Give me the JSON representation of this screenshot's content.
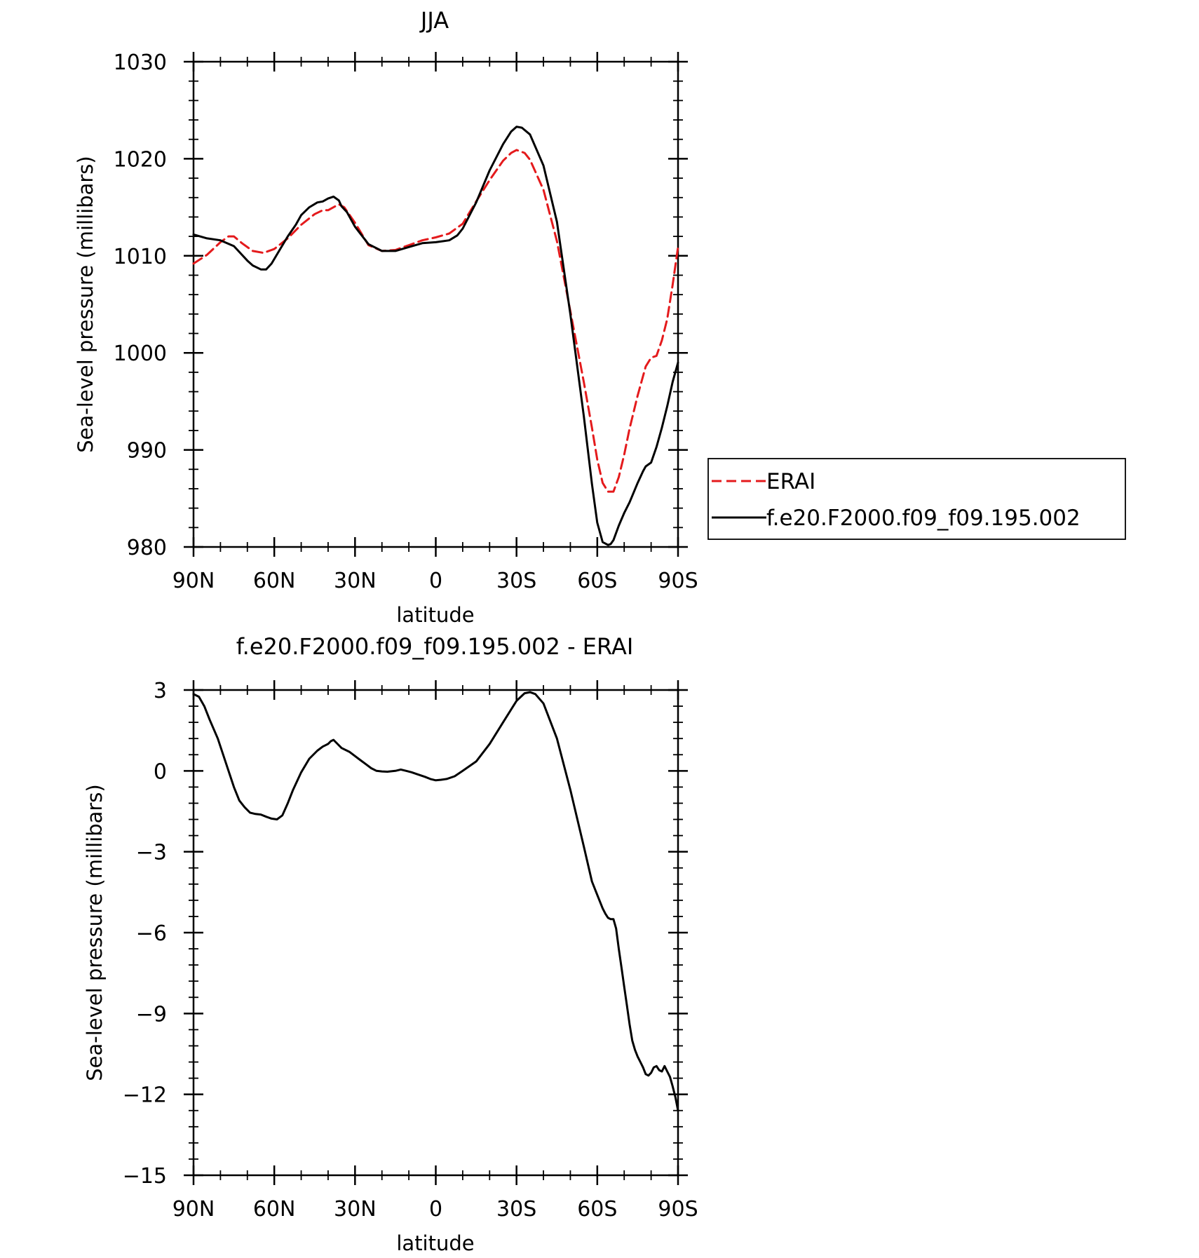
{
  "chart_data": [
    {
      "type": "line",
      "title": "JJA",
      "xlabel": "latitude",
      "ylabel": "Sea-level pressure (millibars)",
      "xlim": [
        90,
        -90
      ],
      "ylim": [
        980,
        1030
      ],
      "xticks": [
        90,
        60,
        30,
        0,
        -30,
        -60,
        -90
      ],
      "xtick_labels": [
        "90N",
        "60N",
        "30N",
        "0",
        "30S",
        "60S",
        "90S"
      ],
      "yticks": [
        980,
        990,
        1000,
        1010,
        1020,
        1030
      ],
      "ytick_labels": [
        "980",
        "990",
        "1000",
        "1010",
        "1020",
        "1030"
      ],
      "grid": false,
      "legend": "right",
      "series": [
        {
          "name": "ERAI",
          "color": "#e41a1c",
          "dash": "dashed",
          "x": [
            90,
            85,
            80,
            77,
            75,
            72,
            68,
            64,
            60,
            55,
            50,
            45,
            42,
            40,
            38,
            36,
            34,
            30,
            25,
            20,
            15,
            10,
            5,
            0,
            -5,
            -10,
            -15,
            -20,
            -25,
            -28,
            -30,
            -33,
            -35,
            -40,
            -45,
            -50,
            -55,
            -58,
            -60,
            -62,
            -64,
            -66,
            -68,
            -70,
            -72,
            -75,
            -78,
            -80,
            -82,
            -84,
            -86,
            -88,
            -90
          ],
          "y": [
            1009.2,
            1010.1,
            1011.4,
            1012.0,
            1012.0,
            1011.3,
            1010.5,
            1010.3,
            1010.7,
            1011.8,
            1013.2,
            1014.3,
            1014.7,
            1014.7,
            1015.0,
            1015.3,
            1015.0,
            1013.4,
            1011.1,
            1010.5,
            1010.6,
            1011.1,
            1011.6,
            1011.9,
            1012.3,
            1013.3,
            1015.6,
            1017.8,
            1019.8,
            1020.6,
            1020.9,
            1020.6,
            1019.9,
            1016.8,
            1011.5,
            1004.3,
            997.0,
            992.3,
            989.0,
            986.6,
            985.7,
            985.7,
            987.2,
            989.5,
            992.2,
            995.6,
            998.6,
            999.5,
            999.7,
            1001.3,
            1003.5,
            1007.0,
            1010.9
          ]
        },
        {
          "name": "f.e20.F2000.f09_f09.195.002",
          "color": "#000000",
          "dash": "solid",
          "x": [
            90,
            85,
            80,
            75,
            72,
            70,
            68,
            65,
            63,
            61,
            58,
            55,
            52,
            50,
            47,
            44,
            42,
            40,
            38,
            36,
            35,
            33,
            30,
            25,
            20,
            15,
            10,
            5,
            0,
            -5,
            -8,
            -10,
            -15,
            -20,
            -25,
            -28,
            -30,
            -32,
            -35,
            -40,
            -45,
            -50,
            -55,
            -58,
            -60,
            -62,
            -64,
            -65,
            -66,
            -68,
            -70,
            -72,
            -75,
            -77,
            -78,
            -80,
            -82,
            -84,
            -86,
            -88,
            -90
          ],
          "y": [
            1012.2,
            1011.8,
            1011.6,
            1011.0,
            1010.1,
            1009.5,
            1009.0,
            1008.6,
            1008.6,
            1009.2,
            1010.6,
            1012.0,
            1013.2,
            1014.2,
            1015.0,
            1015.5,
            1015.6,
            1015.9,
            1016.1,
            1015.7,
            1015.1,
            1014.5,
            1013.0,
            1011.2,
            1010.5,
            1010.5,
            1010.9,
            1011.3,
            1011.4,
            1011.6,
            1012.1,
            1012.8,
            1015.5,
            1018.8,
            1021.5,
            1022.8,
            1023.3,
            1023.2,
            1022.5,
            1019.3,
            1013.5,
            1004.0,
            993.5,
            986.5,
            982.5,
            980.5,
            980.2,
            980.3,
            980.7,
            982.2,
            983.5,
            984.6,
            986.6,
            987.8,
            988.3,
            988.7,
            990.3,
            992.3,
            994.5,
            997.0,
            999.0
          ]
        }
      ]
    },
    {
      "type": "line",
      "title": "f.e20.F2000.f09_f09.195.002 - ERAI",
      "xlabel": "latitude",
      "ylabel": "Sea-level pressure (millibars)",
      "xlim": [
        90,
        -90
      ],
      "ylim": [
        -15,
        3
      ],
      "xticks": [
        90,
        60,
        30,
        0,
        -30,
        -60,
        -90
      ],
      "xtick_labels": [
        "90N",
        "60N",
        "30N",
        "0",
        "30S",
        "60S",
        "90S"
      ],
      "yticks": [
        -15,
        -12,
        -9,
        -6,
        -3,
        0,
        3
      ],
      "ytick_labels": [
        "−15",
        "−12",
        "−9",
        "−6",
        "−3",
        "0",
        "3"
      ],
      "grid": false,
      "series": [
        {
          "color": "#000000",
          "dash": "solid",
          "x": [
            90,
            88,
            86,
            84,
            81,
            78,
            75,
            73,
            71,
            69,
            67,
            65,
            63,
            61,
            59,
            57,
            55,
            53,
            50,
            47,
            44,
            42,
            41,
            40,
            39,
            38,
            37,
            35,
            32,
            30,
            28,
            26,
            24,
            22,
            20,
            18,
            15,
            13,
            11,
            9,
            7,
            4,
            2,
            0,
            -2,
            -4,
            -7,
            -10,
            -15,
            -20,
            -25,
            -30,
            -33,
            -35,
            -37,
            -40,
            -45,
            -50,
            -55,
            -58,
            -60,
            -62,
            -63,
            -64,
            -65,
            -66,
            -67,
            -68,
            -69,
            -70,
            -71,
            -72,
            -73,
            -74,
            -75,
            -76,
            -77,
            -78,
            -79,
            -80,
            -81,
            -82,
            -83,
            -84,
            -85,
            -86,
            -87,
            -88,
            -89,
            -90
          ],
          "y": [
            2.85,
            2.75,
            2.4,
            1.9,
            1.2,
            0.3,
            -0.6,
            -1.1,
            -1.35,
            -1.55,
            -1.6,
            -1.62,
            -1.7,
            -1.77,
            -1.8,
            -1.65,
            -1.2,
            -0.7,
            -0.05,
            0.45,
            0.75,
            0.9,
            0.95,
            1.0,
            1.1,
            1.15,
            1.05,
            0.85,
            0.7,
            0.55,
            0.4,
            0.25,
            0.1,
            0.0,
            -0.02,
            -0.03,
            0.0,
            0.05,
            0.0,
            -0.05,
            -0.12,
            -0.22,
            -0.3,
            -0.35,
            -0.33,
            -0.3,
            -0.2,
            0.0,
            0.35,
            1.0,
            1.8,
            2.6,
            2.88,
            2.92,
            2.85,
            2.5,
            1.2,
            -0.7,
            -2.8,
            -4.1,
            -4.6,
            -5.1,
            -5.3,
            -5.45,
            -5.5,
            -5.5,
            -5.85,
            -6.6,
            -7.3,
            -8.0,
            -8.7,
            -9.4,
            -10.0,
            -10.35,
            -10.6,
            -10.8,
            -11.0,
            -11.25,
            -11.3,
            -11.2,
            -11.0,
            -10.95,
            -11.1,
            -11.15,
            -10.95,
            -11.15,
            -11.35,
            -11.7,
            -12.1,
            -12.6
          ]
        }
      ]
    }
  ]
}
